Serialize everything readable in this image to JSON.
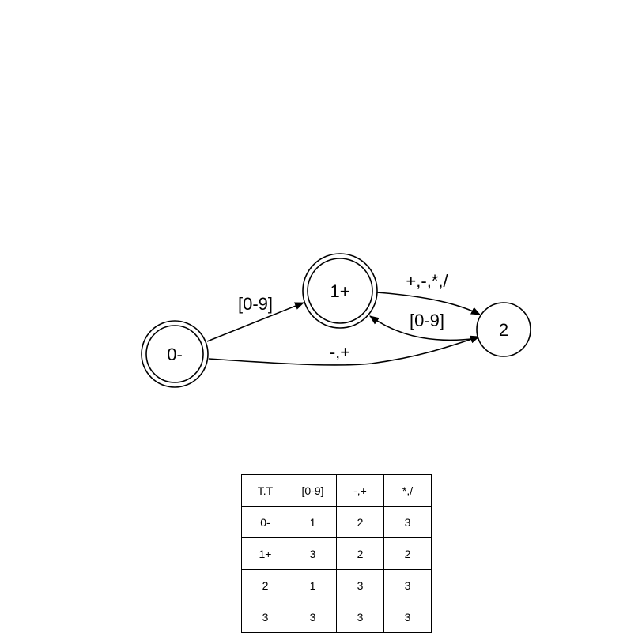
{
  "diagram": {
    "states": [
      {
        "id": "s0",
        "label": "0-"
      },
      {
        "id": "s1",
        "label": "1+"
      },
      {
        "id": "s2",
        "label": "2"
      }
    ],
    "edges": [
      {
        "from": "0-",
        "to": "1+",
        "label": "[0-9]"
      },
      {
        "from": "1+",
        "to": "2",
        "label": "+,-,*,/"
      },
      {
        "from": "2",
        "to": "1+",
        "label": "[0-9]"
      },
      {
        "from": "0-",
        "to": "2",
        "label": "-,+"
      }
    ]
  },
  "table": {
    "header": [
      "T.T",
      "[0-9]",
      "-,+",
      "*,/"
    ],
    "rows": [
      [
        "0-",
        "1",
        "2",
        "3"
      ],
      [
        "1+",
        "3",
        "2",
        "2"
      ],
      [
        "2",
        "1",
        "3",
        "3"
      ],
      [
        "3",
        "3",
        "3",
        "3"
      ]
    ]
  }
}
